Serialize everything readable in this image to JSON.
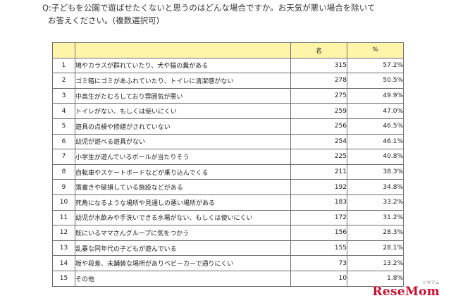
{
  "question": {
    "line1": "Q:子どもを公園で遊ばせたくないと思うのはどんな場合ですか。お天気が悪い場合を除いて",
    "line2": "お答えください。(複数選択可)"
  },
  "table": {
    "headers": {
      "no": "",
      "item": "",
      "count": "名",
      "pct": "%"
    },
    "rows": [
      {
        "no": "1",
        "item": "鳩やカラスが群れていたり、犬や猫の糞がある",
        "count": "315",
        "pct": "57.2%"
      },
      {
        "no": "2",
        "item": "ゴミ箱にゴミがあふれていたり、トイレに清潔感がない",
        "count": "278",
        "pct": "50.5%"
      },
      {
        "no": "3",
        "item": "中高生がたむろしており雰囲気が悪い",
        "count": "275",
        "pct": "49.9%"
      },
      {
        "no": "4",
        "item": "トイレがない、もしくは使いにくい",
        "count": "259",
        "pct": "47.0%"
      },
      {
        "no": "5",
        "item": "遊具の点検や修繕がされていない",
        "count": "256",
        "pct": "46.5%"
      },
      {
        "no": "6",
        "item": "幼児が遊べる遊具がない",
        "count": "254",
        "pct": "46.1%"
      },
      {
        "no": "7",
        "item": "小学生が遊んでいるボールが当たりそう",
        "count": "225",
        "pct": "40.8%"
      },
      {
        "no": "8",
        "item": "自転車やスケートボードなどが乗り込んでくる",
        "count": "211",
        "pct": "38.3%"
      },
      {
        "no": "9",
        "item": "落書きや破損している施設などがある",
        "count": "192",
        "pct": "34.8%"
      },
      {
        "no": "10",
        "item": "死角になるような場所や見通しの悪い場所がある",
        "count": "183",
        "pct": "33.2%"
      },
      {
        "no": "11",
        "item": "幼児が水飲みや手洗いできる水場がない、もしくは使いにくい",
        "count": "172",
        "pct": "31.2%"
      },
      {
        "no": "12",
        "item": "既にいるママさんグループに気をつかう",
        "count": "156",
        "pct": "28.3%"
      },
      {
        "no": "13",
        "item": "乱暴な同年代の子どもが遊んでいる",
        "count": "155",
        "pct": "28.1%"
      },
      {
        "no": "14",
        "item": "坂や段差、未舗装な場所がありベビーカーで通りにくい",
        "count": "73",
        "pct": "13.2%"
      },
      {
        "no": "15",
        "item": "その他",
        "count": "10",
        "pct": "1.8%"
      }
    ]
  },
  "watermark": {
    "text": "ReseMom",
    "kana": "リセマム"
  }
}
